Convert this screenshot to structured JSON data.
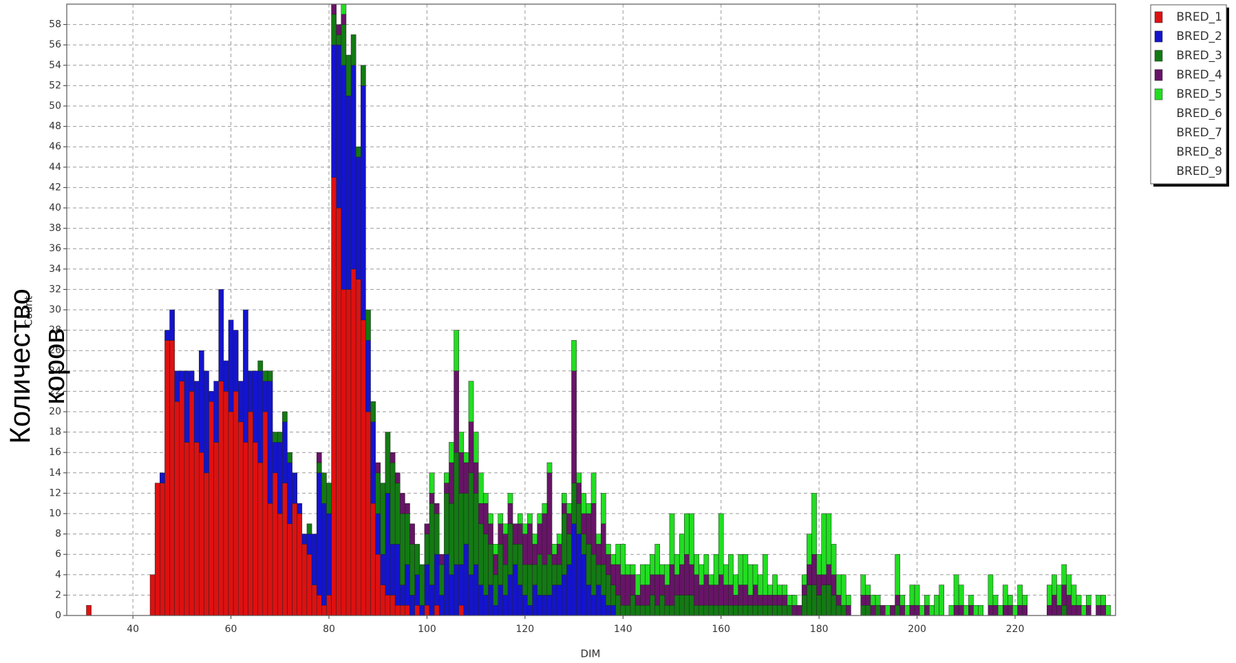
{
  "chart_data": {
    "type": "bar",
    "stacked": true,
    "xlabel": "DIM",
    "ylabel": "Count",
    "y_annotation": [
      "Количество",
      "коров"
    ],
    "xlim": [
      26.5,
      240.5
    ],
    "ylim": [
      0,
      60
    ],
    "xticks": [
      40,
      60,
      80,
      100,
      120,
      140,
      160,
      180,
      200,
      220
    ],
    "yticks": [
      0,
      2,
      4,
      6,
      8,
      10,
      12,
      14,
      16,
      18,
      20,
      22,
      24,
      26,
      28,
      30,
      32,
      34,
      36,
      38,
      40,
      42,
      44,
      46,
      48,
      50,
      52,
      54,
      56,
      58
    ],
    "grid": true,
    "legend": "outside-right-top",
    "legend_extra_entries": [
      "BRED_6",
      "BRED_7",
      "BRED_8",
      "BRED_9"
    ],
    "x": [
      31,
      32,
      33,
      34,
      35,
      36,
      37,
      38,
      39,
      40,
      41,
      42,
      43,
      44,
      45,
      46,
      47,
      48,
      49,
      50,
      51,
      52,
      53,
      54,
      55,
      56,
      57,
      58,
      59,
      60,
      61,
      62,
      63,
      64,
      65,
      66,
      67,
      68,
      69,
      70,
      71,
      72,
      73,
      74,
      75,
      76,
      77,
      78,
      79,
      80,
      81,
      82,
      83,
      84,
      85,
      86,
      87,
      88,
      89,
      90,
      91,
      92,
      93,
      94,
      95,
      96,
      97,
      98,
      99,
      100,
      101,
      102,
      103,
      104,
      105,
      106,
      107,
      108,
      109,
      110,
      111,
      112,
      113,
      114,
      115,
      116,
      117,
      118,
      119,
      120,
      121,
      122,
      123,
      124,
      125,
      126,
      127,
      128,
      129,
      130,
      131,
      132,
      133,
      134,
      135,
      136,
      137,
      138,
      139,
      140,
      141,
      142,
      143,
      144,
      145,
      146,
      147,
      148,
      149,
      150,
      151,
      152,
      153,
      154,
      155,
      156,
      157,
      158,
      159,
      160,
      161,
      162,
      163,
      164,
      165,
      166,
      167,
      168,
      169,
      170,
      171,
      172,
      173,
      174,
      175,
      176,
      177,
      178,
      179,
      180,
      181,
      182,
      183,
      184,
      185,
      186,
      187,
      188,
      189,
      190,
      191,
      192,
      193,
      194,
      195,
      196,
      197,
      198,
      199,
      200,
      201,
      202,
      203,
      204,
      205,
      206,
      207,
      208,
      209,
      210,
      211,
      212,
      213,
      214,
      215,
      216,
      217,
      218,
      219,
      220,
      221,
      222,
      223,
      224,
      225,
      226,
      227,
      228,
      229,
      230,
      231,
      232,
      233,
      234,
      235,
      236,
      237,
      238,
      239
    ],
    "series": [
      {
        "name": "BRED_1",
        "color": "#dd1111",
        "values": [
          1,
          0,
          0,
          0,
          0,
          0,
          0,
          0,
          0,
          0,
          0,
          0,
          0,
          4,
          13,
          13,
          27,
          27,
          21,
          23,
          17,
          22,
          17,
          16,
          14,
          21,
          17,
          23,
          22,
          20,
          22,
          19,
          17,
          20,
          17,
          15,
          20,
          11,
          14,
          10,
          13,
          9,
          11,
          10,
          7,
          6,
          3,
          2,
          1,
          2,
          43,
          40,
          32,
          32,
          34,
          33,
          29,
          20,
          11,
          6,
          3,
          2,
          2,
          1,
          1,
          1,
          0,
          1,
          0,
          1,
          0,
          1,
          0,
          0,
          0,
          0,
          1,
          0,
          0,
          0,
          0,
          0,
          0,
          0,
          0,
          0,
          0,
          0,
          0,
          0,
          0,
          0,
          0,
          0,
          0,
          0,
          0,
          0,
          0,
          0,
          0,
          0,
          0,
          0,
          0,
          0,
          0,
          0,
          0,
          0,
          0,
          0,
          0,
          0,
          0,
          0,
          0,
          0,
          0,
          0,
          0,
          0,
          0,
          0,
          0,
          0,
          0,
          0,
          0,
          0,
          0,
          0,
          0,
          0,
          0,
          0,
          0,
          0,
          0,
          0,
          0,
          0,
          0,
          0,
          0,
          0,
          0,
          0,
          0,
          0,
          0,
          0,
          0,
          0,
          0,
          0,
          0,
          0,
          0,
          0,
          0,
          0,
          0,
          0,
          0,
          0,
          0,
          0,
          0,
          0,
          0,
          0,
          0,
          0,
          0,
          0,
          0,
          0,
          0,
          0,
          0,
          0,
          0,
          0,
          0,
          0,
          0,
          0,
          0,
          0,
          0,
          0,
          0,
          0,
          0,
          0,
          0,
          0,
          0,
          0,
          0,
          0,
          0,
          0,
          0,
          0,
          0,
          0,
          0
        ]
      },
      {
        "name": "BRED_2",
        "color": "#1414cc",
        "values": [
          0,
          0,
          0,
          0,
          0,
          0,
          0,
          0,
          0,
          0,
          0,
          0,
          0,
          0,
          0,
          1,
          1,
          3,
          3,
          1,
          7,
          2,
          6,
          10,
          10,
          1,
          6,
          9,
          3,
          9,
          6,
          4,
          13,
          4,
          7,
          9,
          3,
          12,
          3,
          7,
          6,
          6,
          3,
          1,
          1,
          2,
          5,
          12,
          10,
          8,
          13,
          16,
          22,
          19,
          20,
          12,
          23,
          7,
          8,
          4,
          3,
          10,
          5,
          6,
          2,
          4,
          2,
          3,
          1,
          4,
          3,
          5,
          2,
          6,
          4,
          5,
          4,
          7,
          4,
          5,
          3,
          2,
          3,
          1,
          3,
          2,
          4,
          5,
          3,
          2,
          1,
          3,
          2,
          2,
          2,
          3,
          3,
          4,
          5,
          9,
          8,
          6,
          3,
          2,
          3,
          2,
          1,
          1,
          0,
          0,
          0,
          0,
          0,
          0,
          0,
          0,
          0,
          0,
          0,
          0,
          0,
          0,
          0,
          0,
          0,
          0,
          0,
          0,
          0,
          0,
          0,
          0,
          0,
          0,
          0,
          0,
          0,
          0,
          0,
          0,
          0,
          0,
          0,
          0,
          0,
          0,
          0,
          0,
          0,
          0,
          0,
          0,
          0,
          0,
          0,
          0,
          0,
          0,
          0,
          0,
          0,
          0,
          0,
          0,
          0,
          0,
          0,
          0,
          0,
          0,
          0,
          0,
          0,
          0,
          0,
          0,
          0,
          0,
          0,
          0,
          0,
          0,
          0,
          0,
          0,
          0,
          0,
          0,
          0,
          0,
          0,
          0,
          0,
          0,
          0,
          0,
          0,
          0,
          0,
          0,
          0,
          0,
          0,
          0,
          0,
          0,
          0,
          0,
          0
        ]
      },
      {
        "name": "BRED_3",
        "color": "#137a13",
        "values": [
          0,
          0,
          0,
          0,
          0,
          0,
          0,
          0,
          0,
          0,
          0,
          0,
          0,
          0,
          0,
          0,
          0,
          0,
          0,
          0,
          0,
          0,
          0,
          0,
          0,
          0,
          0,
          0,
          0,
          0,
          0,
          0,
          0,
          0,
          0,
          1,
          1,
          1,
          1,
          1,
          1,
          1,
          0,
          0,
          0,
          1,
          0,
          1,
          3,
          3,
          3,
          1,
          4,
          4,
          3,
          1,
          2,
          3,
          2,
          4,
          7,
          6,
          8,
          6,
          7,
          5,
          5,
          3,
          4,
          3,
          8,
          4,
          3,
          6,
          7,
          11,
          7,
          5,
          10,
          7,
          6,
          6,
          4,
          3,
          4,
          3,
          5,
          2,
          4,
          3,
          4,
          2,
          4,
          3,
          4,
          2,
          2,
          6,
          3,
          4,
          3,
          2,
          4,
          4,
          2,
          3,
          3,
          2,
          2,
          1,
          1,
          2,
          1,
          1,
          1,
          2,
          1,
          2,
          1,
          1,
          2,
          2,
          2,
          2,
          1,
          1,
          1,
          1,
          1,
          1,
          1,
          1,
          1,
          1,
          1,
          1,
          1,
          1,
          1,
          1,
          1,
          1,
          1,
          1,
          0,
          0,
          2,
          3,
          3,
          2,
          3,
          3,
          2,
          1,
          1,
          0,
          0,
          0,
          1,
          1,
          0,
          1,
          0,
          0,
          0,
          1,
          0,
          0,
          0,
          0,
          0,
          0,
          0,
          0,
          0,
          0,
          0,
          0,
          0,
          0,
          0,
          0,
          0,
          0,
          0,
          0,
          0,
          0,
          0,
          0,
          0,
          0,
          0,
          0,
          0,
          0,
          0,
          0,
          0,
          1,
          0,
          0,
          0,
          0,
          0,
          0,
          0,
          0,
          0
        ]
      },
      {
        "name": "BRED_4",
        "color": "#671467",
        "values": [
          0,
          0,
          0,
          0,
          0,
          0,
          0,
          0,
          0,
          0,
          0,
          0,
          0,
          0,
          0,
          0,
          0,
          0,
          0,
          0,
          0,
          0,
          0,
          0,
          0,
          0,
          0,
          0,
          0,
          0,
          0,
          0,
          0,
          0,
          0,
          0,
          0,
          0,
          0,
          0,
          0,
          0,
          0,
          0,
          0,
          0,
          0,
          1,
          0,
          0,
          1,
          1,
          1,
          0,
          0,
          0,
          0,
          0,
          0,
          1,
          0,
          0,
          1,
          1,
          2,
          1,
          2,
          0,
          0,
          1,
          1,
          1,
          1,
          1,
          4,
          8,
          4,
          3,
          5,
          3,
          2,
          3,
          2,
          2,
          2,
          3,
          2,
          2,
          2,
          3,
          4,
          2,
          3,
          5,
          8,
          1,
          2,
          1,
          2,
          11,
          2,
          2,
          3,
          5,
          2,
          4,
          2,
          2,
          3,
          3,
          3,
          2,
          1,
          2,
          2,
          2,
          3,
          2,
          2,
          4,
          2,
          3,
          4,
          3,
          3,
          2,
          3,
          2,
          2,
          3,
          2,
          2,
          1,
          2,
          2,
          1,
          2,
          1,
          1,
          1,
          1,
          1,
          1,
          0,
          1,
          1,
          1,
          2,
          3,
          2,
          1,
          2,
          2,
          1,
          0,
          1,
          0,
          0,
          1,
          1,
          1,
          0,
          1,
          0,
          1,
          1,
          1,
          0,
          1,
          1,
          0,
          1,
          0,
          0,
          0,
          0,
          0,
          1,
          1,
          0,
          1,
          0,
          0,
          0,
          1,
          1,
          0,
          1,
          1,
          0,
          1,
          1,
          0,
          0,
          0,
          0,
          1,
          2,
          1,
          2,
          2,
          1,
          1,
          0,
          1,
          0,
          1,
          1,
          0
        ]
      },
      {
        "name": "BRED_5",
        "color": "#22dd22",
        "values": [
          0,
          0,
          0,
          0,
          0,
          0,
          0,
          0,
          0,
          0,
          0,
          0,
          0,
          0,
          0,
          0,
          0,
          0,
          0,
          0,
          0,
          0,
          0,
          0,
          0,
          0,
          0,
          0,
          0,
          0,
          0,
          0,
          0,
          0,
          0,
          0,
          0,
          0,
          0,
          0,
          0,
          0,
          0,
          0,
          0,
          0,
          0,
          0,
          0,
          0,
          0,
          0,
          1,
          0,
          0,
          0,
          0,
          0,
          0,
          0,
          0,
          0,
          0,
          0,
          0,
          0,
          0,
          0,
          0,
          0,
          2,
          0,
          0,
          1,
          2,
          4,
          2,
          1,
          4,
          3,
          3,
          1,
          1,
          1,
          1,
          1,
          1,
          0,
          1,
          1,
          1,
          1,
          1,
          1,
          1,
          1,
          1,
          1,
          1,
          3,
          1,
          2,
          1,
          3,
          1,
          3,
          1,
          1,
          2,
          3,
          1,
          1,
          2,
          2,
          2,
          2,
          3,
          1,
          2,
          5,
          2,
          3,
          4,
          5,
          2,
          2,
          2,
          1,
          3,
          6,
          2,
          3,
          2,
          3,
          3,
          3,
          2,
          2,
          4,
          1,
          2,
          1,
          1,
          1,
          1,
          0,
          1,
          3,
          6,
          2,
          6,
          5,
          3,
          2,
          3,
          1,
          0,
          0,
          2,
          1,
          1,
          1,
          0,
          1,
          0,
          4,
          1,
          1,
          2,
          2,
          1,
          1,
          1,
          2,
          3,
          0,
          1,
          3,
          2,
          1,
          1,
          1,
          1,
          0,
          3,
          1,
          1,
          2,
          1,
          1,
          2,
          1,
          0,
          0,
          0,
          0,
          2,
          2,
          2,
          2,
          2,
          2,
          1,
          1,
          1,
          0,
          1,
          1,
          1
        ]
      }
    ]
  }
}
